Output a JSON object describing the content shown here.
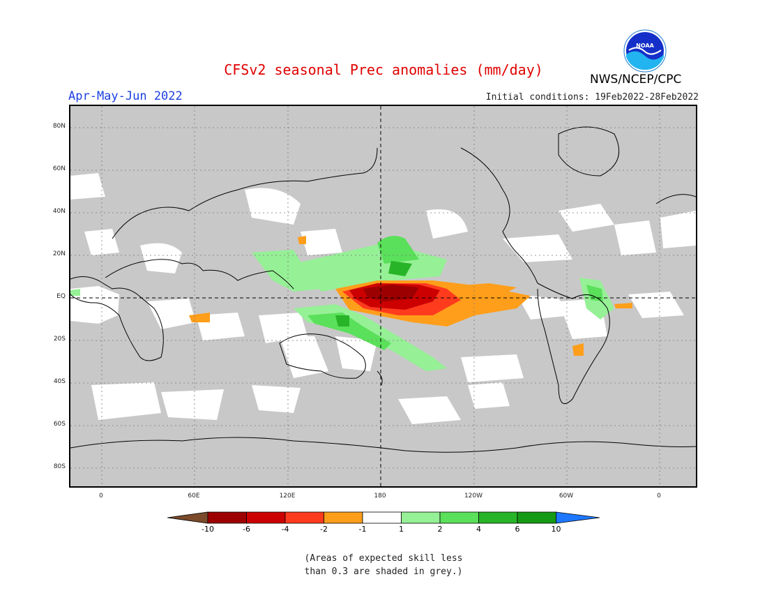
{
  "header": {
    "title": "CFSv2 seasonal Prec anomalies (mm/day)",
    "season": "Apr-May-Jun 2022",
    "initial_conditions": "Initial conditions: 19Feb2022-28Feb2022",
    "agency": "NWS/NCEP/CPC",
    "logo_text": "NOAA"
  },
  "map": {
    "type": "global precipitation anomaly map",
    "projection": "equirectangular",
    "background": "#c8c8c8",
    "lat_labels": [
      "80N",
      "60N",
      "40N",
      "20N",
      "EQ",
      "20S",
      "40S",
      "60S",
      "80S"
    ],
    "lon_labels": [
      "0",
      "60E",
      "120E",
      "180",
      "120W",
      "60W",
      "0"
    ]
  },
  "legend": {
    "tick_labels": [
      "-10",
      "-6",
      "-4",
      "-2",
      "-1",
      "1",
      "2",
      "4",
      "6",
      "10"
    ],
    "colors": [
      "#7a4a2a",
      "#9c0000",
      "#cc0000",
      "#ff3b1e",
      "#ff9e1a",
      "#ffffff",
      "#96f096",
      "#5ae05a",
      "#28b428",
      "#159a15",
      "#1e78ff"
    ]
  },
  "note": {
    "line1": "(Areas of expected skill less",
    "line2": "than 0.3 are shaded in grey.)"
  }
}
